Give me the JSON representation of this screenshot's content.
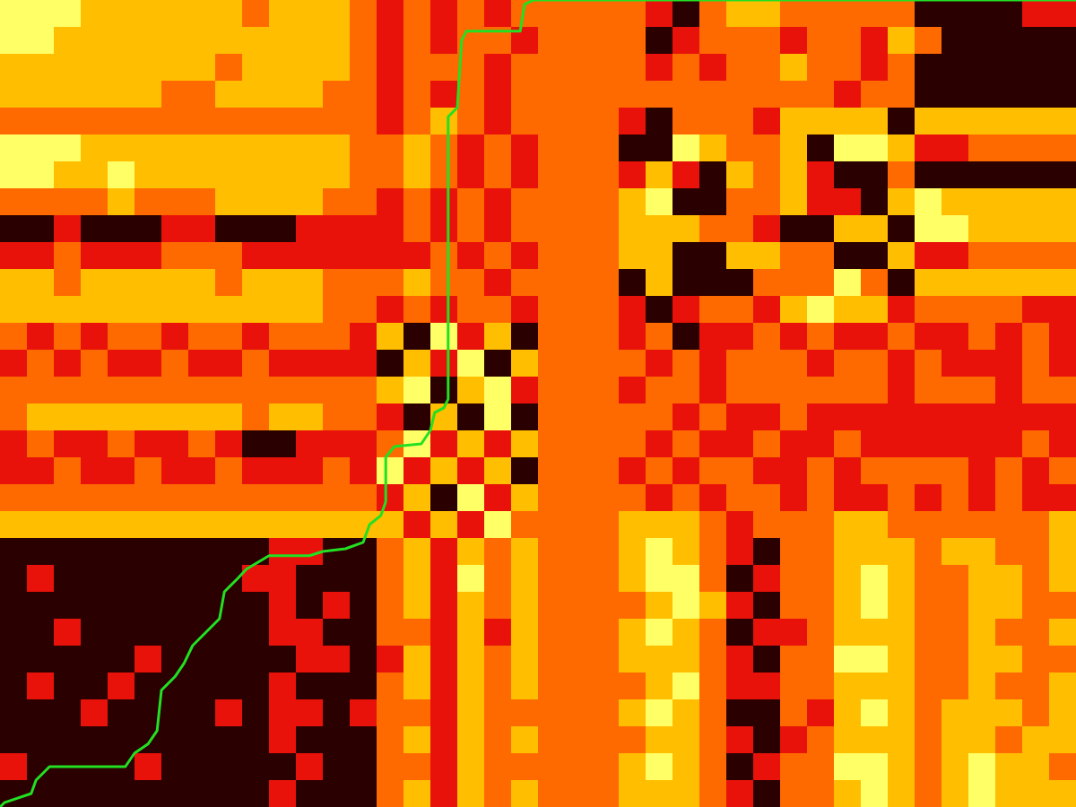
{
  "chart_data": {
    "type": "heatmap",
    "xlim": [
      0,
      200
    ],
    "ylim": [
      0,
      150
    ],
    "tick_labels": false,
    "grid": false,
    "zlim": [
      0,
      4
    ],
    "colors": [
      "#2b0000",
      "#e8120a",
      "#ff6a00",
      "#ffbe00",
      "#ffff66"
    ],
    "cells": [
      [
        4,
        4,
        4,
        3,
        3,
        3,
        3,
        3,
        3,
        2,
        3,
        3,
        3,
        2,
        1,
        2,
        1,
        2,
        1,
        2,
        2,
        2,
        2,
        2,
        1,
        0,
        2,
        3,
        3,
        2,
        2,
        2,
        2,
        2,
        0,
        0,
        0,
        0,
        1,
        1
      ],
      [
        4,
        4,
        3,
        3,
        3,
        3,
        3,
        3,
        3,
        3,
        3,
        3,
        3,
        2,
        1,
        2,
        1,
        2,
        2,
        1,
        2,
        2,
        2,
        2,
        0,
        1,
        2,
        2,
        2,
        1,
        2,
        2,
        1,
        3,
        2,
        0,
        0,
        0,
        0,
        0
      ],
      [
        3,
        3,
        3,
        3,
        3,
        3,
        3,
        3,
        2,
        3,
        3,
        3,
        3,
        2,
        1,
        2,
        2,
        2,
        1,
        2,
        2,
        2,
        2,
        2,
        1,
        2,
        1,
        2,
        2,
        3,
        2,
        2,
        1,
        2,
        0,
        0,
        0,
        0,
        0,
        0
      ],
      [
        3,
        3,
        3,
        3,
        3,
        3,
        2,
        2,
        3,
        3,
        3,
        3,
        2,
        2,
        1,
        2,
        1,
        2,
        1,
        2,
        2,
        2,
        2,
        2,
        2,
        2,
        2,
        2,
        2,
        2,
        2,
        1,
        2,
        2,
        0,
        0,
        0,
        0,
        0,
        0
      ],
      [
        2,
        2,
        2,
        2,
        2,
        2,
        2,
        2,
        2,
        2,
        2,
        2,
        2,
        2,
        1,
        2,
        3,
        2,
        1,
        2,
        2,
        2,
        2,
        1,
        0,
        2,
        2,
        2,
        1,
        3,
        3,
        3,
        3,
        0,
        3,
        3,
        3,
        3,
        3,
        3
      ],
      [
        4,
        4,
        4,
        3,
        3,
        3,
        3,
        3,
        3,
        3,
        3,
        3,
        3,
        2,
        2,
        3,
        2,
        1,
        2,
        1,
        2,
        2,
        2,
        0,
        0,
        4,
        3,
        2,
        2,
        3,
        0,
        4,
        4,
        3,
        1,
        1,
        2,
        2,
        2,
        2
      ],
      [
        4,
        4,
        3,
        3,
        4,
        3,
        3,
        3,
        3,
        3,
        3,
        3,
        3,
        2,
        2,
        3,
        2,
        1,
        2,
        1,
        2,
        2,
        2,
        1,
        3,
        1,
        0,
        3,
        2,
        3,
        1,
        0,
        0,
        2,
        0,
        0,
        0,
        0,
        0,
        0
      ],
      [
        2,
        2,
        2,
        2,
        3,
        2,
        2,
        2,
        3,
        3,
        3,
        3,
        2,
        2,
        1,
        2,
        1,
        2,
        1,
        2,
        2,
        2,
        2,
        3,
        4,
        0,
        0,
        2,
        2,
        3,
        1,
        1,
        0,
        3,
        4,
        3,
        3,
        3,
        3,
        3
      ],
      [
        0,
        0,
        1,
        0,
        0,
        0,
        1,
        1,
        0,
        0,
        0,
        1,
        1,
        1,
        1,
        2,
        1,
        2,
        1,
        2,
        2,
        2,
        2,
        3,
        3,
        3,
        2,
        2,
        1,
        0,
        0,
        3,
        3,
        0,
        4,
        4,
        3,
        3,
        3,
        3
      ],
      [
        1,
        1,
        2,
        1,
        1,
        1,
        2,
        2,
        2,
        1,
        1,
        1,
        1,
        1,
        1,
        1,
        2,
        1,
        2,
        1,
        2,
        2,
        2,
        3,
        3,
        0,
        0,
        3,
        3,
        2,
        2,
        0,
        0,
        3,
        1,
        1,
        2,
        2,
        2,
        2
      ],
      [
        3,
        3,
        2,
        3,
        3,
        3,
        3,
        3,
        2,
        3,
        3,
        3,
        2,
        2,
        2,
        3,
        2,
        2,
        1,
        2,
        2,
        2,
        2,
        0,
        3,
        0,
        0,
        0,
        2,
        2,
        2,
        4,
        2,
        0,
        3,
        3,
        3,
        3,
        3,
        3
      ],
      [
        3,
        3,
        3,
        3,
        3,
        3,
        3,
        3,
        3,
        3,
        3,
        3,
        2,
        2,
        1,
        2,
        1,
        2,
        2,
        1,
        2,
        2,
        2,
        1,
        0,
        1,
        2,
        2,
        1,
        3,
        4,
        3,
        3,
        1,
        2,
        2,
        2,
        2,
        1,
        1
      ],
      [
        2,
        1,
        2,
        1,
        2,
        2,
        1,
        2,
        2,
        1,
        2,
        2,
        2,
        1,
        3,
        0,
        4,
        1,
        3,
        0,
        2,
        2,
        2,
        1,
        2,
        0,
        1,
        1,
        2,
        1,
        2,
        1,
        1,
        2,
        1,
        1,
        2,
        1,
        2,
        1
      ],
      [
        1,
        2,
        1,
        2,
        1,
        1,
        2,
        1,
        1,
        2,
        1,
        1,
        1,
        1,
        0,
        3,
        1,
        4,
        0,
        3,
        2,
        2,
        2,
        2,
        1,
        2,
        1,
        2,
        2,
        2,
        1,
        2,
        2,
        1,
        2,
        1,
        1,
        1,
        2,
        1
      ],
      [
        2,
        2,
        2,
        2,
        2,
        2,
        2,
        2,
        2,
        2,
        2,
        2,
        2,
        2,
        3,
        4,
        0,
        3,
        4,
        1,
        2,
        2,
        2,
        1,
        2,
        2,
        1,
        2,
        2,
        2,
        2,
        2,
        2,
        1,
        2,
        2,
        2,
        1,
        2,
        2
      ],
      [
        2,
        3,
        3,
        3,
        3,
        3,
        3,
        3,
        3,
        2,
        3,
        3,
        2,
        2,
        1,
        0,
        3,
        0,
        4,
        0,
        2,
        2,
        2,
        2,
        2,
        1,
        2,
        1,
        1,
        2,
        1,
        1,
        1,
        1,
        1,
        1,
        1,
        1,
        1,
        1
      ],
      [
        1,
        2,
        1,
        1,
        2,
        1,
        1,
        2,
        1,
        0,
        0,
        1,
        1,
        1,
        2,
        4,
        1,
        3,
        1,
        3,
        2,
        2,
        2,
        2,
        1,
        2,
        1,
        1,
        2,
        1,
        1,
        2,
        1,
        1,
        1,
        1,
        1,
        1,
        2,
        1
      ],
      [
        1,
        1,
        2,
        1,
        1,
        2,
        1,
        1,
        2,
        1,
        1,
        1,
        2,
        1,
        4,
        1,
        3,
        1,
        3,
        0,
        2,
        2,
        2,
        1,
        2,
        1,
        2,
        2,
        1,
        1,
        2,
        1,
        2,
        2,
        2,
        2,
        1,
        2,
        1,
        2
      ],
      [
        2,
        2,
        2,
        2,
        2,
        2,
        2,
        2,
        2,
        2,
        2,
        2,
        2,
        2,
        1,
        3,
        0,
        4,
        1,
        3,
        2,
        2,
        2,
        2,
        1,
        2,
        1,
        2,
        2,
        1,
        2,
        1,
        1,
        2,
        1,
        2,
        1,
        2,
        1,
        1
      ],
      [
        3,
        3,
        3,
        3,
        3,
        3,
        3,
        3,
        3,
        3,
        3,
        3,
        3,
        3,
        3,
        1,
        3,
        1,
        4,
        2,
        2,
        2,
        2,
        3,
        3,
        3,
        2,
        1,
        2,
        2,
        2,
        3,
        3,
        2,
        2,
        2,
        2,
        2,
        2,
        3
      ],
      [
        0,
        0,
        0,
        0,
        0,
        0,
        0,
        0,
        0,
        0,
        1,
        1,
        0,
        0,
        2,
        3,
        1,
        3,
        2,
        3,
        2,
        2,
        2,
        3,
        4,
        3,
        2,
        1,
        0,
        2,
        2,
        3,
        3,
        3,
        2,
        3,
        3,
        2,
        2,
        3
      ],
      [
        0,
        1,
        0,
        0,
        0,
        0,
        0,
        0,
        0,
        1,
        1,
        0,
        0,
        0,
        2,
        3,
        1,
        4,
        2,
        3,
        2,
        2,
        2,
        3,
        4,
        4,
        2,
        0,
        1,
        2,
        2,
        3,
        4,
        3,
        2,
        2,
        3,
        3,
        2,
        3
      ],
      [
        0,
        0,
        0,
        0,
        0,
        0,
        0,
        0,
        0,
        0,
        1,
        0,
        1,
        0,
        2,
        3,
        1,
        3,
        2,
        3,
        2,
        2,
        2,
        2,
        3,
        4,
        3,
        1,
        0,
        2,
        2,
        3,
        4,
        3,
        2,
        2,
        3,
        3,
        2,
        2
      ],
      [
        0,
        0,
        1,
        0,
        0,
        0,
        0,
        0,
        0,
        0,
        1,
        1,
        0,
        0,
        2,
        2,
        1,
        3,
        1,
        3,
        2,
        2,
        2,
        3,
        4,
        3,
        2,
        0,
        1,
        1,
        2,
        3,
        3,
        3,
        2,
        2,
        3,
        2,
        2,
        3
      ],
      [
        0,
        0,
        0,
        0,
        0,
        1,
        0,
        0,
        0,
        0,
        0,
        1,
        1,
        0,
        1,
        3,
        1,
        3,
        2,
        3,
        2,
        2,
        2,
        3,
        3,
        3,
        2,
        1,
        0,
        2,
        2,
        4,
        4,
        3,
        2,
        2,
        3,
        3,
        2,
        2
      ],
      [
        0,
        1,
        0,
        0,
        1,
        0,
        0,
        0,
        0,
        0,
        1,
        0,
        0,
        0,
        2,
        3,
        1,
        3,
        2,
        3,
        2,
        2,
        2,
        2,
        3,
        4,
        2,
        1,
        1,
        2,
        2,
        3,
        3,
        3,
        2,
        2,
        3,
        2,
        2,
        3
      ],
      [
        0,
        0,
        0,
        1,
        0,
        0,
        0,
        0,
        1,
        0,
        1,
        1,
        0,
        1,
        2,
        2,
        1,
        3,
        2,
        2,
        2,
        2,
        2,
        3,
        4,
        3,
        2,
        0,
        0,
        2,
        1,
        3,
        4,
        3,
        2,
        3,
        3,
        3,
        2,
        3
      ],
      [
        0,
        0,
        0,
        0,
        0,
        0,
        0,
        0,
        0,
        0,
        1,
        0,
        0,
        0,
        2,
        3,
        1,
        3,
        2,
        3,
        2,
        2,
        2,
        2,
        3,
        3,
        2,
        1,
        0,
        1,
        2,
        3,
        3,
        3,
        2,
        3,
        3,
        2,
        3,
        3
      ],
      [
        1,
        0,
        0,
        0,
        0,
        1,
        0,
        0,
        0,
        0,
        0,
        1,
        0,
        0,
        2,
        2,
        1,
        3,
        2,
        2,
        2,
        2,
        2,
        3,
        4,
        3,
        2,
        0,
        1,
        2,
        2,
        4,
        4,
        3,
        2,
        3,
        4,
        3,
        3,
        2
      ],
      [
        0,
        0,
        0,
        0,
        0,
        0,
        0,
        0,
        0,
        0,
        1,
        0,
        0,
        0,
        2,
        3,
        1,
        3,
        2,
        3,
        2,
        2,
        2,
        3,
        3,
        3,
        2,
        1,
        0,
        2,
        2,
        3,
        4,
        3,
        2,
        3,
        4,
        3,
        3,
        3
      ]
    ],
    "series": [
      {
        "type": "line",
        "color": "#22e022",
        "x": [
          0,
          0.8,
          5.8,
          6.7,
          9.2,
          23.3,
          25,
          27.5,
          29.2,
          30,
          32.5,
          34.2,
          35.8,
          38.3,
          40.8,
          41.7,
          44.2,
          45.8,
          50,
          57.5,
          60,
          64.2,
          67.5,
          68.7,
          70.8,
          71.7,
          71.7,
          73.3,
          78.3,
          80,
          80.8,
          82.5,
          83.3,
          83.3,
          85,
          85.8,
          86.7,
          96.7,
          97.5,
          99.2,
          200
        ],
        "values": [
          0,
          0.8,
          2.5,
          5,
          7.5,
          7.5,
          10,
          11.7,
          14.2,
          21.7,
          24.2,
          26.7,
          30,
          32.5,
          35,
          40,
          42.5,
          44.2,
          46.7,
          46.7,
          47.5,
          48,
          49.2,
          52.5,
          54.2,
          56.7,
          65,
          67,
          67.5,
          70,
          73.3,
          74.2,
          75.8,
          128.3,
          130,
          142.5,
          144.2,
          144.2,
          149.2,
          150,
          150
        ]
      }
    ]
  }
}
